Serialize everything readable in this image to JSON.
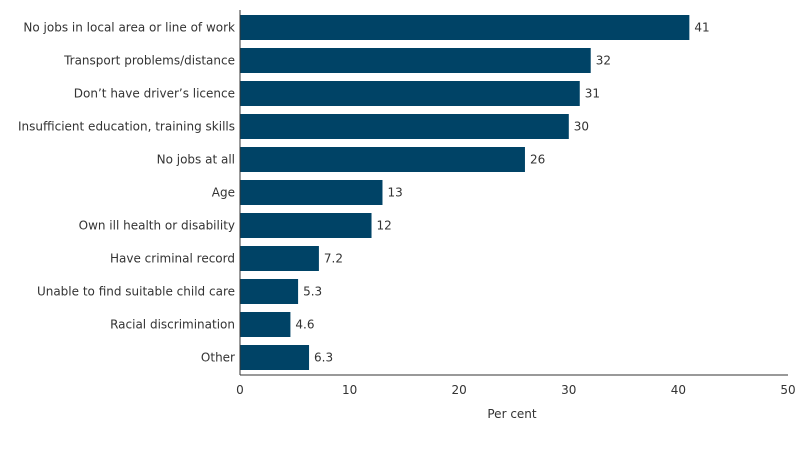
{
  "chart_data": {
    "type": "bar",
    "orientation": "horizontal",
    "title": "",
    "xlabel": "Per cent",
    "ylabel": "",
    "xlim": [
      0,
      50
    ],
    "xticks": [
      0,
      10,
      20,
      30,
      40,
      50
    ],
    "grid": false,
    "legend": "none",
    "bar_color": "#004366",
    "categories": [
      "No jobs in local area or line of work",
      "Transport problems/distance",
      "Don’t have driver’s licence",
      "Insufficient education, training skills",
      "No jobs at all",
      "Age",
      "Own ill health or disability",
      "Have criminal record",
      "Unable to find suitable child care",
      "Racial discrimination",
      "Other"
    ],
    "values": [
      41,
      32,
      31,
      30,
      26,
      13,
      12,
      7.2,
      5.3,
      4.6,
      6.3
    ],
    "value_labels": [
      "41",
      "32",
      "31",
      "30",
      "26",
      "13",
      "12",
      "7.2",
      "5.3",
      "4.6",
      "6.3"
    ]
  }
}
